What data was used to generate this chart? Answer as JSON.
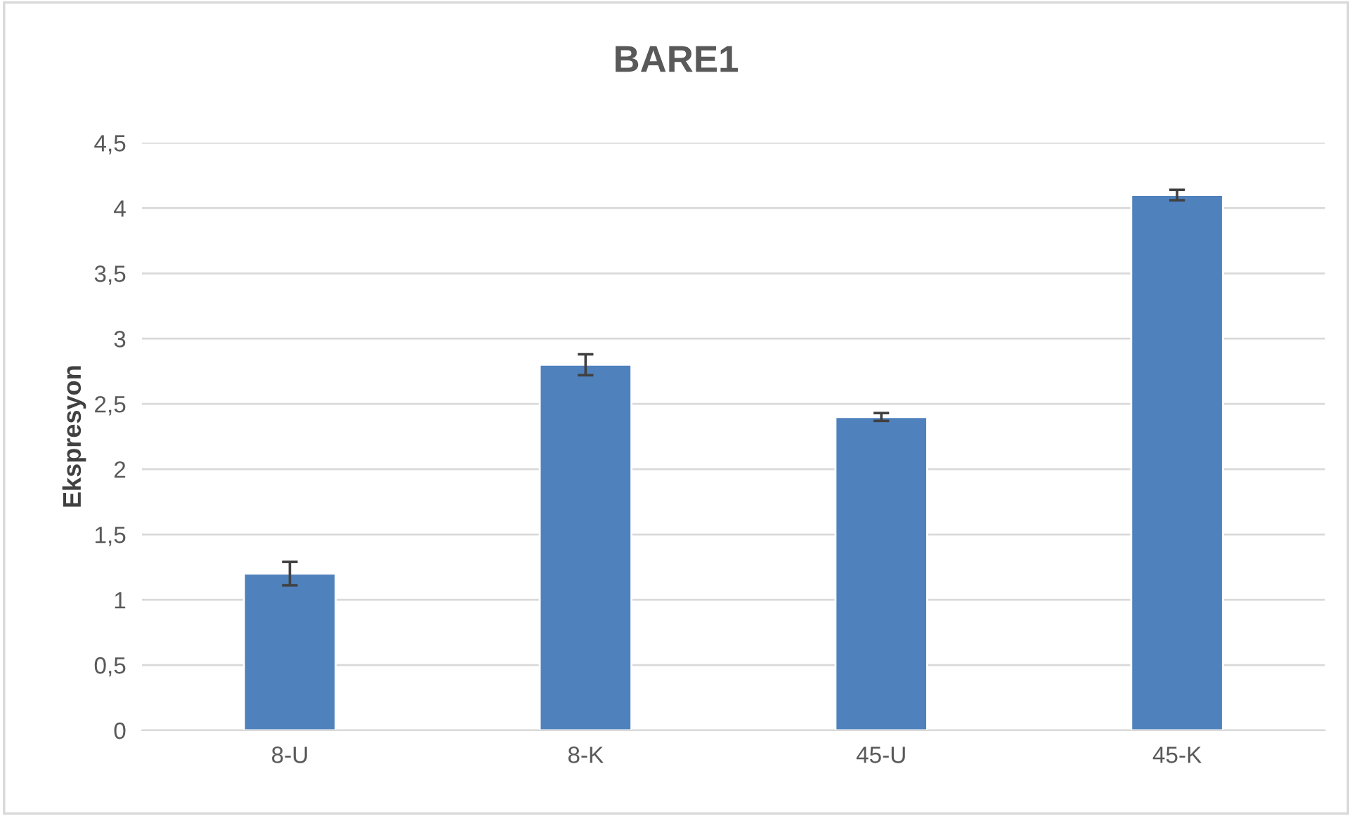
{
  "chart_data": {
    "type": "bar",
    "title": "BARE1",
    "ylabel": "Ekspresyon",
    "categories": [
      "8-U",
      "8-K",
      "45-U",
      "45-K"
    ],
    "values": [
      1.2,
      2.8,
      2.4,
      4.1
    ],
    "errors": [
      0.09,
      0.08,
      0.03,
      0.04
    ],
    "color": "#4f81bd",
    "ylim": [
      0,
      4.5
    ],
    "yticks": [
      0,
      {
        "value": 0.5,
        "label": "0,5"
      },
      1,
      {
        "value": 1.5,
        "label": "1,5"
      },
      2,
      {
        "value": 2.5,
        "label": "2,5"
      },
      3,
      {
        "value": 3.5,
        "label": "3,5"
      },
      4,
      {
        "value": 4.5,
        "label": "4,5"
      }
    ],
    "grid": "y"
  }
}
